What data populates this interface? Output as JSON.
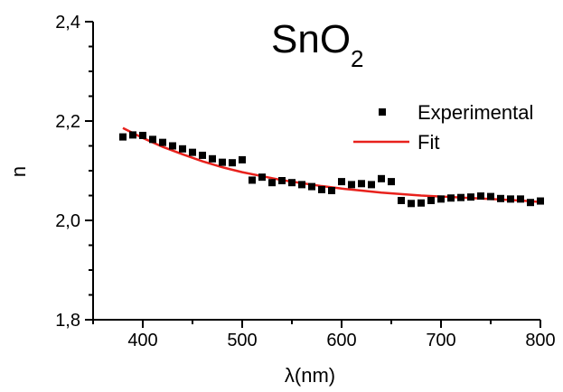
{
  "chart_data": {
    "type": "scatter",
    "title": "SnO",
    "title_subscript": "2",
    "xlabel": "λ(nm)",
    "ylabel": "n",
    "xlim": [
      350,
      800
    ],
    "ylim": [
      1.8,
      2.4
    ],
    "x_ticks": [
      400,
      500,
      600,
      700,
      800
    ],
    "y_ticks": [
      1.8,
      2.0,
      2.2,
      2.4
    ],
    "x_tick_labels": [
      "400",
      "500",
      "600",
      "700",
      "800"
    ],
    "y_tick_labels": [
      "1,8",
      "2,0",
      "2,2",
      "2,4"
    ],
    "grid": false,
    "legend_position": "top-right",
    "colors": {
      "experimental": "#000000",
      "fit": "#e8211c",
      "axis": "#000000"
    },
    "series": [
      {
        "name": "Experimental",
        "kind": "points",
        "x": [
          380,
          390,
          400,
          410,
          420,
          430,
          440,
          450,
          460,
          470,
          480,
          490,
          500,
          510,
          520,
          530,
          540,
          550,
          560,
          570,
          580,
          590,
          600,
          610,
          620,
          630,
          640,
          650,
          660,
          670,
          680,
          690,
          700,
          710,
          720,
          730,
          740,
          750,
          760,
          770,
          780,
          790,
          800
        ],
        "y": [
          2.168,
          2.172,
          2.171,
          2.163,
          2.157,
          2.15,
          2.144,
          2.137,
          2.131,
          2.124,
          2.117,
          2.116,
          2.122,
          2.081,
          2.087,
          2.076,
          2.08,
          2.076,
          2.072,
          2.068,
          2.062,
          2.06,
          2.078,
          2.072,
          2.074,
          2.072,
          2.084,
          2.078,
          2.04,
          2.034,
          2.035,
          2.04,
          2.043,
          2.045,
          2.046,
          2.047,
          2.049,
          2.048,
          2.044,
          2.043,
          2.043,
          2.036,
          2.039
        ]
      },
      {
        "name": "Fit",
        "kind": "line",
        "x": [
          380,
          400,
          420,
          440,
          460,
          480,
          500,
          520,
          540,
          560,
          580,
          600,
          620,
          640,
          660,
          680,
          700,
          720,
          740,
          760,
          780,
          800
        ],
        "y": [
          2.186,
          2.166,
          2.148,
          2.133,
          2.119,
          2.107,
          2.097,
          2.089,
          2.081,
          2.075,
          2.069,
          2.064,
          2.06,
          2.056,
          2.053,
          2.05,
          2.048,
          2.046,
          2.044,
          2.042,
          2.04,
          2.037
        ]
      }
    ]
  }
}
